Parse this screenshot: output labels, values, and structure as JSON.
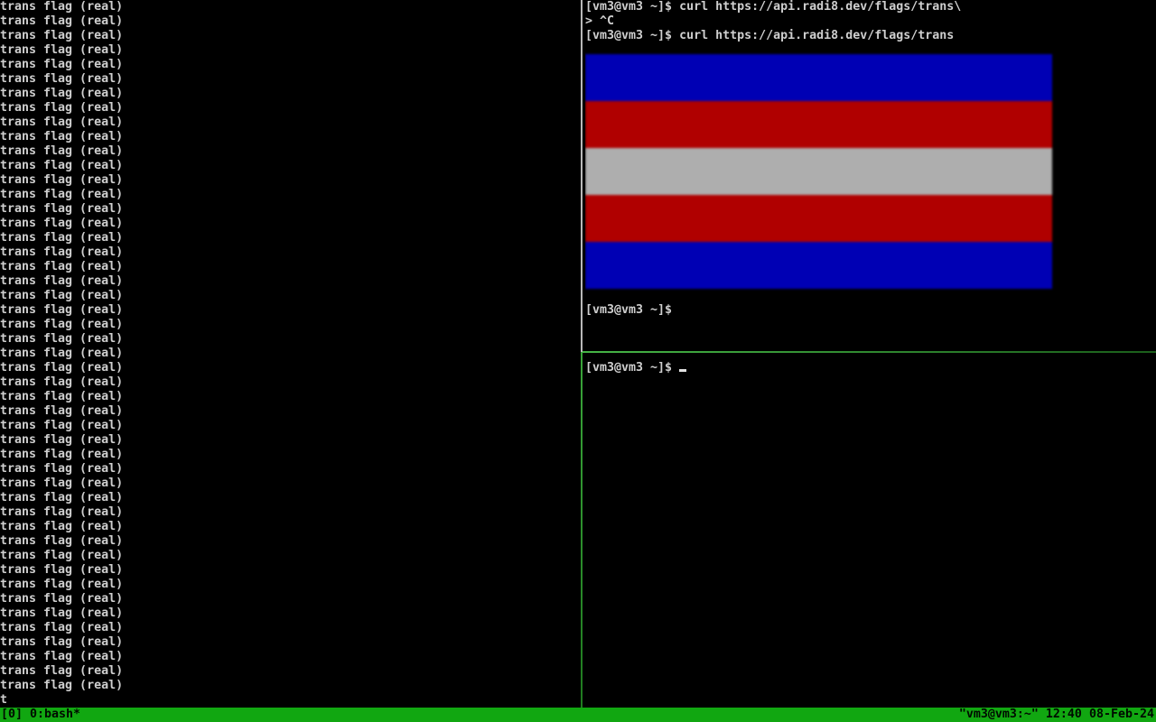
{
  "app": {
    "name": "tmux terminal session"
  },
  "colors": {
    "background": "#000000",
    "foreground": "#cfcfcf",
    "active_pane_border": "#2e8b2e",
    "inactive_pane_border": "#b8b8b8",
    "status_bar_bg": "#11a711",
    "status_bar_fg": "#000a00"
  },
  "left_pane": {
    "repeated_line": "trans flag (real)",
    "repeat_count": 48,
    "partial_line": "t"
  },
  "top_right_pane": {
    "lines": [
      "[vm3@vm3 ~]$ curl https://api.radi8.dev/flags/trans\\",
      "> ^C",
      "[vm3@vm3 ~]$ curl https://api.radi8.dev/flags/trans"
    ],
    "flag_image": {
      "description": "inline terminal image of horizontally striped flag",
      "stripe_colors": [
        "#0000b4",
        "#b00000",
        "#aeaeae",
        "#b00000",
        "#0000b4"
      ]
    },
    "prompt_after_image": "[vm3@vm3 ~]$"
  },
  "bottom_right_pane": {
    "prompt": "[vm3@vm3 ~]$",
    "cursor": "_"
  },
  "status_bar": {
    "left": "[0] 0:bash*",
    "right": "\"vm3@vm3:~\" 12:40 08-Feb-24"
  }
}
